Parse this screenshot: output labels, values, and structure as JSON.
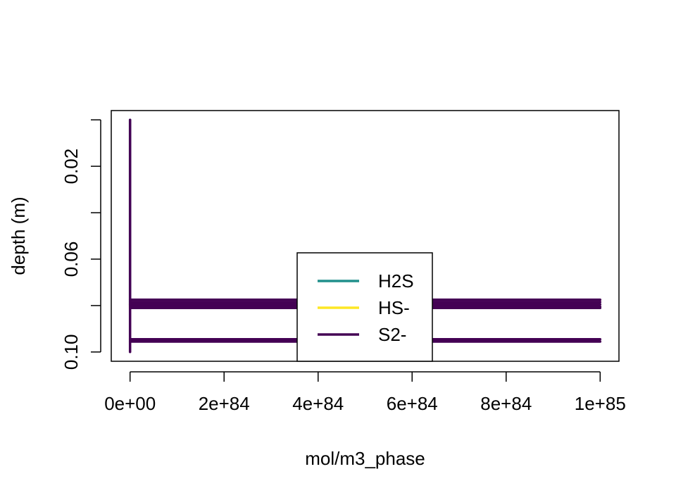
{
  "chart_data": {
    "type": "line",
    "title": "",
    "xlabel": "mol/m3_phase",
    "ylabel": "depth (m)",
    "xlim": [
      -4e+83,
      1.04e+85
    ],
    "ylim": [
      0.104,
      -0.004
    ],
    "y_reversed": true,
    "x_ticks": [
      {
        "value": 0,
        "label": "0e+00"
      },
      {
        "value": 2e+84,
        "label": "2e+84"
      },
      {
        "value": 4e+84,
        "label": "4e+84"
      },
      {
        "value": 6e+84,
        "label": "6e+84"
      },
      {
        "value": 8e+84,
        "label": "8e+84"
      },
      {
        "value": 1e+85,
        "label": "1e+85"
      }
    ],
    "y_ticks": [
      {
        "value": 0.0,
        "label": ""
      },
      {
        "value": 0.02,
        "label": "0.02"
      },
      {
        "value": 0.04,
        "label": ""
      },
      {
        "value": 0.06,
        "label": "0.06"
      },
      {
        "value": 0.08,
        "label": ""
      },
      {
        "value": 0.1,
        "label": "0.10"
      }
    ],
    "grid": false,
    "legend_position": "bottom-center",
    "series": [
      {
        "name": "H2S",
        "color": "#21908C",
        "segments": [
          {
            "x": [
              0,
              0
            ],
            "y": [
              0.0,
              0.08
            ]
          }
        ]
      },
      {
        "name": "HS-",
        "color": "#FDE725",
        "segments": [
          {
            "x": [
              0,
              0
            ],
            "y": [
              0.079,
              0.081
            ]
          }
        ]
      },
      {
        "name": "S2-",
        "color": "#440154",
        "segments": [
          {
            "x": [
              0,
              0
            ],
            "y": [
              0.0,
              0.1
            ]
          },
          {
            "x": [
              0,
              1e+85
            ],
            "y": [
              0.0775,
              0.0775
            ]
          },
          {
            "x": [
              0,
              1e+85
            ],
            "y": [
              0.0785,
              0.0785
            ]
          },
          {
            "x": [
              0,
              1e+85
            ],
            "y": [
              0.0795,
              0.0795
            ]
          },
          {
            "x": [
              0,
              1e+85
            ],
            "y": [
              0.0805,
              0.0805
            ]
          },
          {
            "x": [
              0,
              1e+85
            ],
            "y": [
              0.081,
              0.081
            ]
          },
          {
            "x": [
              0,
              1e+85
            ],
            "y": [
              0.0945,
              0.0945
            ]
          },
          {
            "x": [
              0,
              1e+85
            ],
            "y": [
              0.0955,
              0.0955
            ]
          }
        ]
      }
    ]
  }
}
